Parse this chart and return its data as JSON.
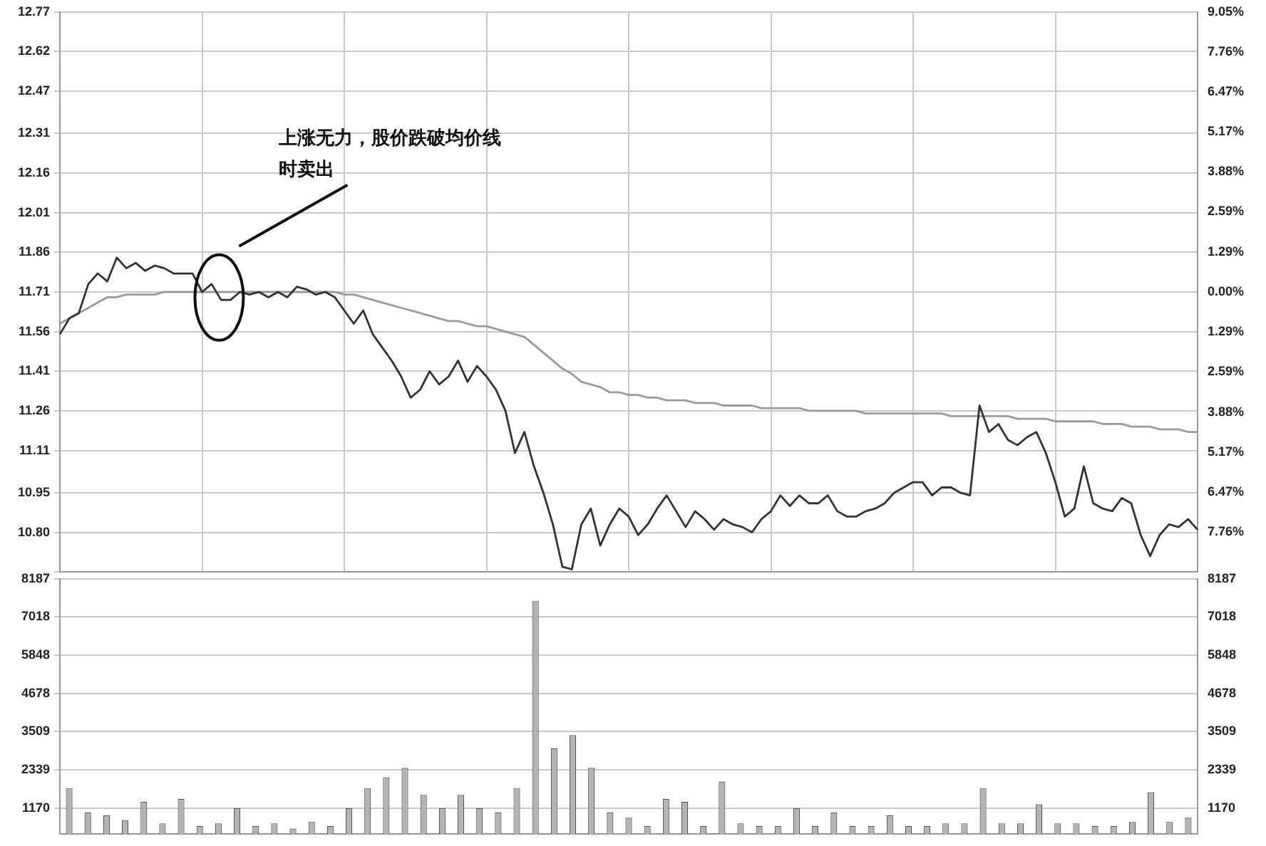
{
  "chart_data": [
    {
      "type": "line",
      "annotations": [
        "上涨无力，股价跌破均价线时卖出"
      ],
      "categories": [
        null,
        null,
        null,
        null,
        null,
        null,
        null,
        null,
        null,
        null,
        null,
        null,
        null,
        null,
        null,
        null,
        null,
        null,
        null,
        null,
        null,
        null,
        null,
        null,
        null,
        null,
        null,
        null,
        null,
        null,
        null,
        null,
        null,
        null,
        null,
        null,
        null,
        null,
        null,
        null,
        null,
        null,
        null,
        null,
        null,
        null,
        null,
        null,
        null,
        null,
        null,
        null,
        null,
        null,
        null,
        null,
        null,
        null,
        null,
        null,
        null,
        null,
        null,
        null,
        null,
        null,
        null,
        null,
        null,
        null,
        null,
        null,
        null,
        null,
        null,
        null,
        null,
        null,
        null,
        null,
        null,
        null,
        null,
        null,
        null,
        null,
        null,
        null,
        null,
        null,
        null,
        null,
        null,
        null,
        null,
        null,
        null,
        null,
        null,
        null,
        null,
        null,
        null,
        null,
        null,
        null,
        null,
        null,
        null,
        null,
        null,
        null,
        null,
        null,
        null,
        null,
        null,
        null,
        null,
        null,
        null
      ],
      "series": [
        {
          "type": "line",
          "color": "#333333",
          "values": [
            11.55,
            11.61,
            11.63,
            11.74,
            11.78,
            11.75,
            11.84,
            11.8,
            11.82,
            11.79,
            11.81,
            11.8,
            11.78,
            11.78,
            11.78,
            11.71,
            11.74,
            11.68,
            11.68,
            11.71,
            11.7,
            11.71,
            11.69,
            11.71,
            11.69,
            11.73,
            11.72,
            11.7,
            11.71,
            11.69,
            11.64,
            11.59,
            11.64,
            11.55,
            11.5,
            11.45,
            11.39,
            11.31,
            11.34,
            11.41,
            11.36,
            11.39,
            11.45,
            11.37,
            11.43,
            11.39,
            11.34,
            11.26,
            11.1,
            11.18,
            11.05,
            10.95,
            10.83,
            10.67,
            10.66,
            10.83,
            10.89,
            10.75,
            10.83,
            10.89,
            10.86,
            10.79,
            10.83,
            10.89,
            10.94,
            10.88,
            10.82,
            10.88,
            10.85,
            10.81,
            10.85,
            10.83,
            10.82,
            10.8,
            10.85,
            10.88,
            10.94,
            10.9,
            10.94,
            10.91,
            10.91,
            10.94,
            10.88,
            10.86,
            10.86,
            10.88,
            10.89,
            10.91,
            10.95,
            10.97,
            10.99,
            10.99,
            10.94,
            10.97,
            10.97,
            10.95,
            10.94,
            11.28,
            11.18,
            11.21,
            11.15,
            11.13,
            11.16,
            11.18,
            11.1,
            10.99,
            10.86,
            10.89,
            11.05,
            10.91,
            10.89,
            10.88,
            10.93,
            10.91,
            10.79,
            10.71,
            10.79,
            10.83,
            10.82,
            10.85,
            10.81
          ]
        },
        {
          "type": "line",
          "color": "#9a9a9a",
          "values": [
            11.59,
            11.61,
            11.63,
            11.65,
            11.67,
            11.69,
            11.69,
            11.7,
            11.7,
            11.7,
            11.7,
            11.71,
            11.71,
            11.71,
            11.71,
            11.71,
            11.71,
            11.71,
            11.71,
            11.71,
            11.71,
            11.71,
            11.71,
            11.71,
            11.71,
            11.71,
            11.71,
            11.71,
            11.71,
            11.71,
            11.7,
            11.7,
            11.69,
            11.68,
            11.67,
            11.66,
            11.65,
            11.64,
            11.63,
            11.62,
            11.61,
            11.6,
            11.6,
            11.59,
            11.58,
            11.58,
            11.57,
            11.56,
            11.55,
            11.54,
            11.51,
            11.48,
            11.45,
            11.42,
            11.4,
            11.37,
            11.36,
            11.35,
            11.33,
            11.33,
            11.32,
            11.32,
            11.31,
            11.31,
            11.3,
            11.3,
            11.3,
            11.29,
            11.29,
            11.29,
            11.28,
            11.28,
            11.28,
            11.28,
            11.27,
            11.27,
            11.27,
            11.27,
            11.27,
            11.26,
            11.26,
            11.26,
            11.26,
            11.26,
            11.26,
            11.25,
            11.25,
            11.25,
            11.25,
            11.25,
            11.25,
            11.25,
            11.25,
            11.25,
            11.24,
            11.24,
            11.24,
            11.24,
            11.24,
            11.24,
            11.24,
            11.23,
            11.23,
            11.23,
            11.23,
            11.22,
            11.22,
            11.22,
            11.22,
            11.22,
            11.21,
            11.21,
            11.21,
            11.2,
            11.2,
            11.2,
            11.19,
            11.19,
            11.19,
            11.18,
            11.18
          ]
        }
      ],
      "ylim": [
        10.65,
        12.77
      ],
      "yticks": [
        {
          "value": 10.65,
          "label": null
        },
        {
          "value": 10.8,
          "label": "10.80"
        },
        10.95,
        11.11,
        11.26,
        11.41,
        11.56,
        11.71,
        11.86,
        12.01,
        12.16,
        12.31,
        12.47,
        12.62,
        12.77
      ],
      "y2lim": [
        -9.05,
        9.05
      ],
      "y2ticks": [
        {
          "value": -9.05,
          "label": null
        },
        {
          "value": -7.76,
          "label": "7.76%"
        },
        {
          "value": -6.47,
          "label": "6.47%"
        },
        {
          "value": -5.17,
          "label": "5.17%"
        },
        {
          "value": -3.88,
          "label": "3.88%"
        },
        {
          "value": -2.59,
          "label": "2.59%"
        },
        {
          "value": -1.29,
          "label": "1.29%"
        },
        {
          "value": 0,
          "label": "0.00%"
        },
        {
          "value": 1.29,
          "label": "1.29%"
        },
        {
          "value": 2.59,
          "label": "2.59%"
        },
        {
          "value": 3.88,
          "label": "3.88%"
        },
        {
          "value": 5.17,
          "label": "5.17%"
        },
        {
          "value": 6.47,
          "label": "6.47%"
        },
        {
          "value": 7.76,
          "label": "7.76%"
        },
        {
          "value": 9.05,
          "label": "9.05%"
        }
      ],
      "grid": true,
      "legend": false,
      "marker": "none",
      "tick_labels": "y"
    },
    {
      "type": "bar",
      "categories": [
        null,
        null,
        null,
        null,
        null,
        null,
        null,
        null,
        null,
        null,
        null,
        null,
        null,
        null,
        null,
        null,
        null,
        null,
        null,
        null,
        null,
        null,
        null,
        null,
        null,
        null,
        null,
        null,
        null,
        null,
        null,
        null,
        null,
        null,
        null,
        null,
        null,
        null,
        null,
        null,
        null,
        null,
        null,
        null,
        null,
        null,
        null,
        null,
        null,
        null,
        null,
        null,
        null,
        null,
        null,
        null,
        null,
        null,
        null,
        null,
        null
      ],
      "series": [
        {
          "color": "#b4b4b4",
          "values": [
            1780,
            1030,
            950,
            800,
            1360,
            700,
            1450,
            620,
            700,
            1160,
            620,
            700,
            540,
            740,
            620,
            1160,
            1780,
            2110,
            2400,
            1570,
            1160,
            1570,
            1160,
            1030,
            1780,
            7500,
            3000,
            3400,
            2400,
            1030,
            870,
            620,
            1450,
            1360,
            620,
            1980,
            700,
            620,
            620,
            1160,
            620,
            1030,
            620,
            620,
            950,
            620,
            620,
            700,
            700,
            1780,
            700,
            700,
            1280,
            700,
            700,
            620,
            620,
            740,
            1650,
            740,
            870
          ]
        }
      ],
      "ylim": [
        372,
        8187
      ],
      "yticks": [
        1170,
        2339,
        3509,
        4678,
        5848,
        7018,
        8187
      ],
      "y2lim": [
        372,
        8187
      ],
      "y2ticks": [
        1170,
        2339,
        3509,
        4678,
        5848,
        7018,
        8187
      ],
      "grid": true,
      "legend": false,
      "tick_labels": "y"
    }
  ]
}
